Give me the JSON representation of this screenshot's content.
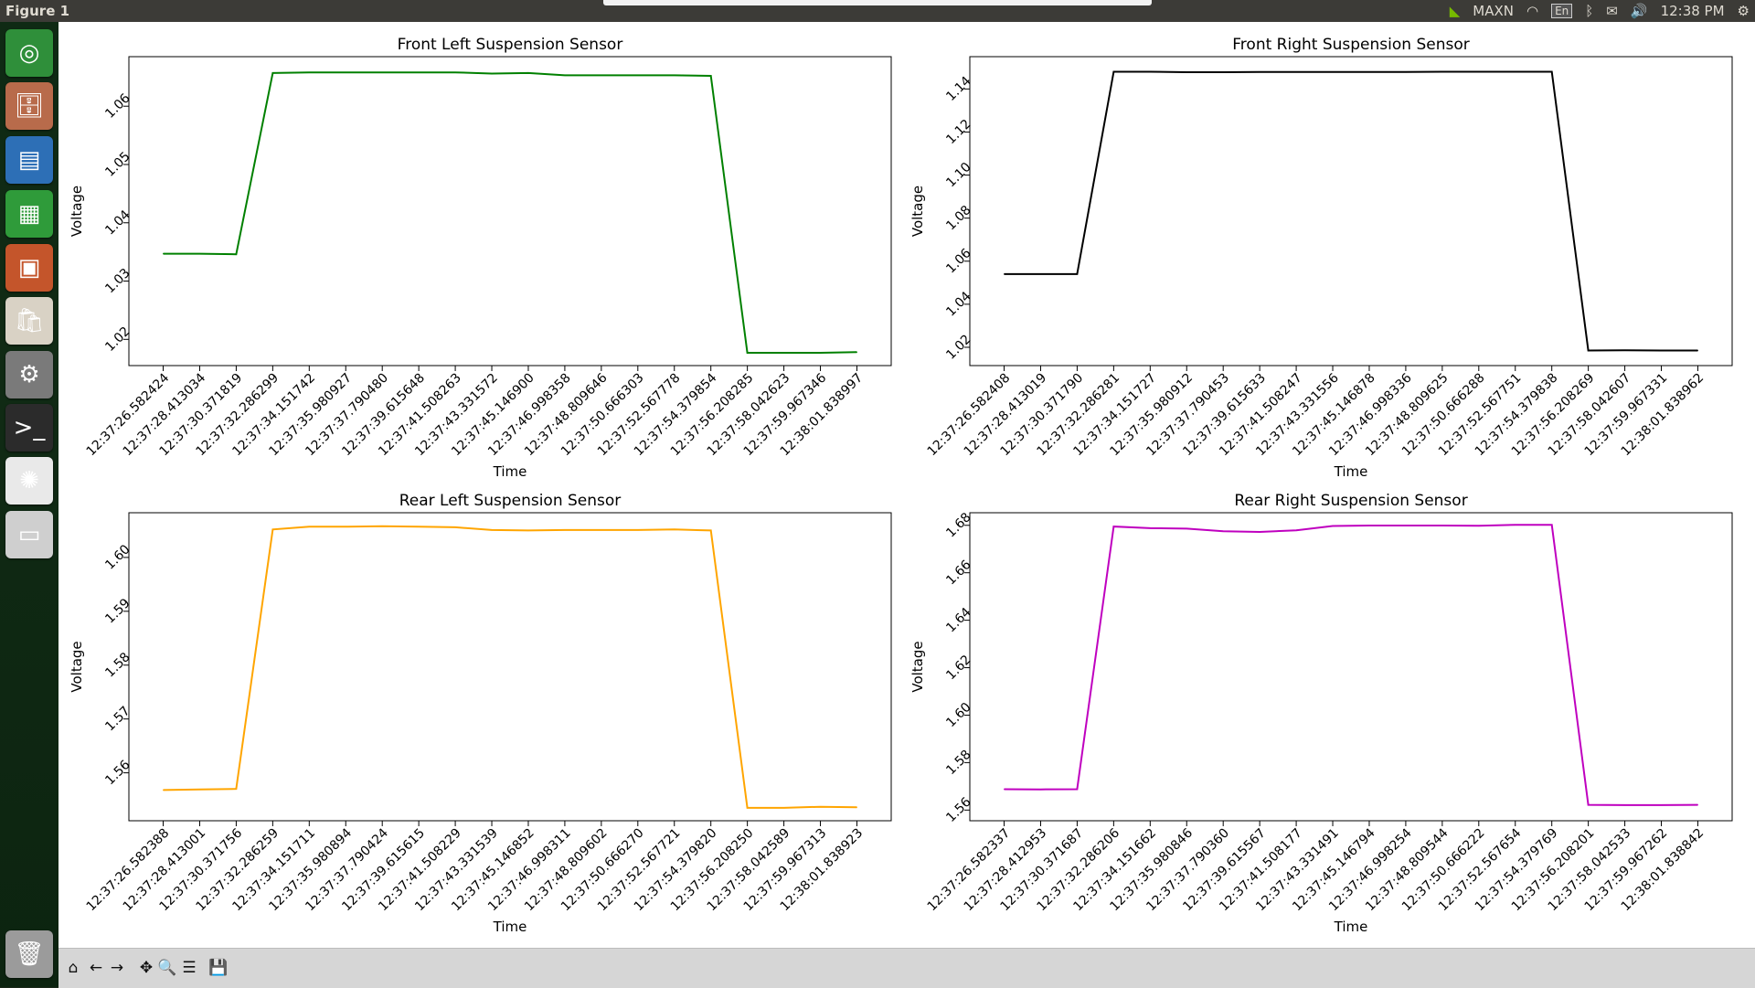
{
  "window": {
    "title": "Figure 1"
  },
  "topbar": {
    "power_mode": "MAXN",
    "keyboard": "En",
    "clock": "12:38 PM"
  },
  "launcher": {
    "items": [
      {
        "name": "ubuntu-dash-icon",
        "glyph": "◎",
        "bg": "#2f8f3a"
      },
      {
        "name": "files-icon",
        "glyph": "🗄",
        "bg": "#b86b4b"
      },
      {
        "name": "writer-icon",
        "glyph": "▤",
        "bg": "#2d6fb6"
      },
      {
        "name": "calc-icon",
        "glyph": "▦",
        "bg": "#2f9b3a"
      },
      {
        "name": "impress-icon",
        "glyph": "▣",
        "bg": "#c4552b"
      },
      {
        "name": "software-center-icon",
        "glyph": "🛍",
        "bg": "#d9d2c5"
      },
      {
        "name": "system-settings-icon",
        "glyph": "⚙",
        "bg": "#7a7a7a"
      },
      {
        "name": "terminal-icon",
        "glyph": ">_",
        "bg": "#2b2b2b"
      },
      {
        "name": "plot-app-icon",
        "glyph": "✺",
        "bg": "#e9e9e9"
      },
      {
        "name": "drive-icon",
        "glyph": "▭",
        "bg": "#cfcfcf"
      },
      {
        "name": "trash-icon",
        "glyph": "🗑",
        "bg": "#9b9b9b"
      }
    ]
  },
  "toolbar": {
    "buttons": [
      {
        "name": "home-icon",
        "glyph": "⌂"
      },
      {
        "name": "back-arrow-icon",
        "glyph": "←"
      },
      {
        "name": "forward-arrow-icon",
        "glyph": "→"
      },
      {
        "name": "pan-icon",
        "glyph": "✥"
      },
      {
        "name": "zoom-icon",
        "glyph": "🔍"
      },
      {
        "name": "configure-subplots-icon",
        "glyph": "☰"
      },
      {
        "name": "save-icon",
        "glyph": "💾"
      }
    ]
  },
  "chart_data": [
    {
      "type": "line",
      "title": "Front Left Suspension Sensor",
      "xlabel": "Time",
      "ylabel": "Voltage",
      "color": "#008000",
      "ylim": [
        1.0155,
        1.0685
      ],
      "yticks": [
        "1.02",
        "1.03",
        "1.04",
        "1.05",
        "1.06"
      ],
      "x": [
        "12:37:26.582424",
        "12:37:28.413034",
        "12:37:30.371819",
        "12:37:32.286299",
        "12:37:34.151742",
        "12:37:35.980927",
        "12:37:37.790480",
        "12:37:39.615648",
        "12:37:41.508263",
        "12:37:43.331572",
        "12:37:45.146900",
        "12:37:46.998358",
        "12:37:48.809646",
        "12:37:50.666303",
        "12:37:52.567778",
        "12:37:54.379854",
        "12:37:56.208285",
        "12:37:58.042623",
        "12:37:59.967346",
        "12:38:01.838997"
      ],
      "values": [
        1.0347,
        1.0347,
        1.0346,
        1.0657,
        1.0658,
        1.0658,
        1.0658,
        1.0658,
        1.0658,
        1.0656,
        1.0657,
        1.0653,
        1.0653,
        1.0653,
        1.0653,
        1.0652,
        1.0177,
        1.0177,
        1.0177,
        1.0178
      ]
    },
    {
      "type": "line",
      "title": "Front Right Suspension Sensor",
      "xlabel": "Time",
      "ylabel": "Voltage",
      "color": "#000000",
      "ylim": [
        1.0115,
        1.155
      ],
      "yticks": [
        "1.02",
        "1.04",
        "1.06",
        "1.08",
        "1.10",
        "1.12",
        "1.14"
      ],
      "x": [
        "12:37:26.582408",
        "12:37:28.413019",
        "12:37:30.371790",
        "12:37:32.286281",
        "12:37:34.151727",
        "12:37:35.980912",
        "12:37:37.790453",
        "12:37:39.615633",
        "12:37:41.508247",
        "12:37:43.331556",
        "12:37:45.146878",
        "12:37:46.998336",
        "12:37:48.809625",
        "12:37:50.666288",
        "12:37:52.567751",
        "12:37:54.379838",
        "12:37:56.208269",
        "12:37:58.042607",
        "12:37:59.967331",
        "12:38:01.838962"
      ],
      "values": [
        1.054,
        1.054,
        1.054,
        1.148,
        1.148,
        1.1478,
        1.1478,
        1.1479,
        1.1479,
        1.1479,
        1.1479,
        1.1479,
        1.148,
        1.148,
        1.148,
        1.148,
        1.0185,
        1.0186,
        1.0185,
        1.0185
      ]
    },
    {
      "type": "line",
      "title": "Rear Left Suspension Sensor",
      "xlabel": "Time",
      "ylabel": "Voltage",
      "color": "#ffa500",
      "ylim": [
        1.5511,
        1.6083
      ],
      "yticks": [
        "1.56",
        "1.57",
        "1.58",
        "1.59",
        "1.60"
      ],
      "x": [
        "12:37:26.582388",
        "12:37:28.413001",
        "12:37:30.371756",
        "12:37:32.286259",
        "12:37:34.151711",
        "12:37:35.980894",
        "12:37:37.790424",
        "12:37:39.615615",
        "12:37:41.508229",
        "12:37:43.331539",
        "12:37:45.146852",
        "12:37:46.998311",
        "12:37:48.809602",
        "12:37:50.666270",
        "12:37:52.567721",
        "12:37:54.379820",
        "12:37:56.208250",
        "12:37:58.042589",
        "12:37:59.967313",
        "12:38:01.838923"
      ],
      "values": [
        1.5568,
        1.5569,
        1.557,
        1.6052,
        1.6057,
        1.6057,
        1.6058,
        1.6057,
        1.6056,
        1.6051,
        1.605,
        1.6051,
        1.6051,
        1.6051,
        1.6052,
        1.605,
        1.5535,
        1.5535,
        1.5537,
        1.5536
      ]
    },
    {
      "type": "line",
      "title": "Rear Right Suspension Sensor",
      "xlabel": "Time",
      "ylabel": "Voltage",
      "color": "#bf00bf",
      "ylim": [
        1.5555,
        1.6853
      ],
      "yticks": [
        "1.56",
        "1.58",
        "1.60",
        "1.62",
        "1.64",
        "1.66",
        "1.68"
      ],
      "x": [
        "12:37:26.582337",
        "12:37:28.412953",
        "12:37:30.371687",
        "12:37:32.286206",
        "12:37:34.151662",
        "12:37:35.980846",
        "12:37:37.790360",
        "12:37:39.615567",
        "12:37:41.508177",
        "12:37:43.331491",
        "12:37:45.146794",
        "12:37:46.998254",
        "12:37:48.809544",
        "12:37:50.666222",
        "12:37:52.567654",
        "12:37:54.379769",
        "12:37:56.208201",
        "12:37:58.042533",
        "12:37:59.967262",
        "12:38:01.838842"
      ],
      "values": [
        1.5688,
        1.5687,
        1.5688,
        1.6795,
        1.6788,
        1.6786,
        1.6775,
        1.6772,
        1.6779,
        1.6797,
        1.6799,
        1.6799,
        1.6799,
        1.6798,
        1.6802,
        1.6802,
        1.5622,
        1.5621,
        1.5621,
        1.5622
      ]
    }
  ]
}
